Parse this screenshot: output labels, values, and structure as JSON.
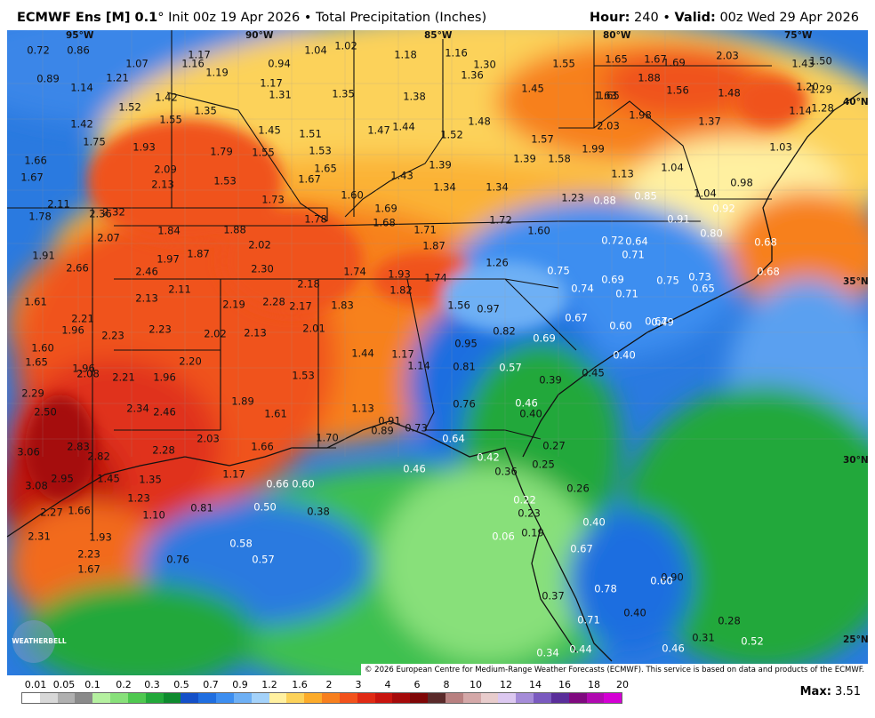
{
  "header": {
    "model": "ECMWF Ens [M] 0.1",
    "degree": "°",
    "init": "Init 00z 19 Apr 2026",
    "bullet": "•",
    "product": "Total Precipitation (Inches)",
    "hour_label": "Hour:",
    "hour_value": "240",
    "valid_label": "Valid:",
    "valid_value": "00z Wed 29 Apr 2026"
  },
  "coords": {
    "lon": [
      "95°W",
      "90°W",
      "85°W",
      "80°W",
      "75°W"
    ],
    "lat": [
      "40°N",
      "35°N",
      "30°N",
      "25°N"
    ]
  },
  "stations": [
    {
      "v": "0.72",
      "d": 1
    },
    {
      "v": "0.86",
      "d": 1
    },
    {
      "v": "0.89",
      "d": 1
    },
    {
      "v": "1.07",
      "d": 1
    },
    {
      "v": "1.16",
      "d": 1
    },
    {
      "v": "1.17",
      "d": 1
    },
    {
      "v": "1.19",
      "d": 1
    },
    {
      "v": "0.94",
      "d": 1
    },
    {
      "v": "1.04",
      "d": 1
    },
    {
      "v": "1.02",
      "d": 1
    },
    {
      "v": "1.18",
      "d": 1
    },
    {
      "v": "1.16",
      "d": 1
    },
    {
      "v": "1.30",
      "d": 1
    },
    {
      "v": "1.36",
      "d": 1
    },
    {
      "v": "1.55",
      "d": 1
    },
    {
      "v": "1.65",
      "d": 1
    },
    {
      "v": "1.67",
      "d": 1
    },
    {
      "v": "1.69",
      "d": 1
    },
    {
      "v": "2.03",
      "d": 1
    },
    {
      "v": "1.43",
      "d": 1
    },
    {
      "v": "1.50",
      "d": 1
    },
    {
      "v": "1.14",
      "d": 1
    },
    {
      "v": "1.21",
      "d": 1
    },
    {
      "v": "1.17",
      "d": 1
    },
    {
      "v": "1.31",
      "d": 1
    },
    {
      "v": "1.35",
      "d": 1
    },
    {
      "v": "1.38",
      "d": 1
    },
    {
      "v": "1.45",
      "d": 1
    },
    {
      "v": "1.65",
      "d": 1
    },
    {
      "v": "1.88",
      "d": 1
    },
    {
      "v": "1.56",
      "d": 1
    },
    {
      "v": "1.48",
      "d": 1
    },
    {
      "v": "1.20",
      "d": 1
    },
    {
      "v": "1.29",
      "d": 1
    },
    {
      "v": "1.52",
      "d": 1
    },
    {
      "v": "1.42",
      "d": 1
    },
    {
      "v": "1.35",
      "d": 1
    },
    {
      "v": "1.63",
      "d": 1
    },
    {
      "v": "1.14",
      "d": 1
    },
    {
      "v": "1.28",
      "d": 1
    },
    {
      "v": "1.42",
      "d": 1
    },
    {
      "v": "1.55",
      "d": 1
    },
    {
      "v": "1.45",
      "d": 1
    },
    {
      "v": "1.51",
      "d": 1
    },
    {
      "v": "1.47",
      "d": 1
    },
    {
      "v": "1.44",
      "d": 1
    },
    {
      "v": "1.48",
      "d": 1
    },
    {
      "v": "1.98",
      "d": 1
    },
    {
      "v": "1.37",
      "d": 1
    },
    {
      "v": "1.75",
      "d": 1
    },
    {
      "v": "1.93",
      "d": 1
    },
    {
      "v": "1.79",
      "d": 1
    },
    {
      "v": "1.55",
      "d": 1
    },
    {
      "v": "1.53",
      "d": 1
    },
    {
      "v": "1.52",
      "d": 1
    },
    {
      "v": "1.57",
      "d": 1
    },
    {
      "v": "2.03",
      "d": 1
    },
    {
      "v": "1.03",
      "d": 1
    },
    {
      "v": "1.66",
      "d": 1
    },
    {
      "v": "2.09",
      "d": 1
    },
    {
      "v": "1.65",
      "d": 1
    },
    {
      "v": "1.39",
      "d": 1
    },
    {
      "v": "1.39",
      "d": 1
    },
    {
      "v": "1.58",
      "d": 1
    },
    {
      "v": "1.99",
      "d": 1
    },
    {
      "v": "1.67",
      "d": 1
    },
    {
      "v": "2.13",
      "d": 1
    },
    {
      "v": "1.53",
      "d": 1
    },
    {
      "v": "1.67",
      "d": 1
    },
    {
      "v": "1.43",
      "d": 1
    },
    {
      "v": "1.34",
      "d": 1
    },
    {
      "v": "1.34",
      "d": 1
    },
    {
      "v": "1.13",
      "d": 1
    },
    {
      "v": "1.04",
      "d": 1
    },
    {
      "v": "0.98",
      "d": 1
    },
    {
      "v": "1.60",
      "d": 1
    },
    {
      "v": "1.73",
      "d": 1
    },
    {
      "v": "1.23",
      "d": 1
    },
    {
      "v": "0.88",
      "d": 0
    },
    {
      "v": "0.85",
      "d": 0
    },
    {
      "v": "1.04",
      "d": 1
    },
    {
      "v": "0.92",
      "d": 0
    },
    {
      "v": "2.11",
      "d": 1
    },
    {
      "v": "1.78",
      "d": 1
    },
    {
      "v": "2.36",
      "d": 1
    },
    {
      "v": "2.32",
      "d": 1
    },
    {
      "v": "1.78",
      "d": 1
    },
    {
      "v": "1.69",
      "d": 1
    },
    {
      "v": "1.72",
      "d": 1
    },
    {
      "v": "0.91",
      "d": 0
    },
    {
      "v": "1.84",
      "d": 1
    },
    {
      "v": "1.88",
      "d": 1
    },
    {
      "v": "1.68",
      "d": 1
    },
    {
      "v": "1.71",
      "d": 1
    },
    {
      "v": "1.60",
      "d": 1
    },
    {
      "v": "0.80",
      "d": 0
    },
    {
      "v": "2.07",
      "d": 1
    },
    {
      "v": "2.02",
      "d": 1
    },
    {
      "v": "1.87",
      "d": 1
    },
    {
      "v": "0.72",
      "d": 0
    },
    {
      "v": "0.64",
      "d": 0
    },
    {
      "v": "0.68",
      "d": 0
    },
    {
      "v": "1.91",
      "d": 1
    },
    {
      "v": "1.97",
      "d": 1
    },
    {
      "v": "1.87",
      "d": 1
    },
    {
      "v": "0.71",
      "d": 0
    },
    {
      "v": "2.66",
      "d": 1
    },
    {
      "v": "2.46",
      "d": 1
    },
    {
      "v": "2.30",
      "d": 1
    },
    {
      "v": "1.74",
      "d": 1
    },
    {
      "v": "1.93",
      "d": 1
    },
    {
      "v": "1.74",
      "d": 1
    },
    {
      "v": "1.26",
      "d": 1
    },
    {
      "v": "0.75",
      "d": 0
    },
    {
      "v": "0.68",
      "d": 0
    },
    {
      "v": "2.11",
      "d": 1
    },
    {
      "v": "2.18",
      "d": 1
    },
    {
      "v": "1.82",
      "d": 1
    },
    {
      "v": "0.69",
      "d": 0
    },
    {
      "v": "0.75",
      "d": 0
    },
    {
      "v": "0.73",
      "d": 0
    },
    {
      "v": "1.61",
      "d": 1
    },
    {
      "v": "2.13",
      "d": 1
    },
    {
      "v": "2.19",
      "d": 1
    },
    {
      "v": "2.28",
      "d": 1
    },
    {
      "v": "2.17",
      "d": 1
    },
    {
      "v": "1.83",
      "d": 1
    },
    {
      "v": "1.56",
      "d": 1
    },
    {
      "v": "0.97",
      "d": 1
    },
    {
      "v": "0.74",
      "d": 0
    },
    {
      "v": "0.71",
      "d": 0
    },
    {
      "v": "0.65",
      "d": 0
    },
    {
      "v": "2.21",
      "d": 1
    },
    {
      "v": "1.96",
      "d": 1
    },
    {
      "v": "2.23",
      "d": 1
    },
    {
      "v": "2.23",
      "d": 1
    },
    {
      "v": "2.02",
      "d": 1
    },
    {
      "v": "2.13",
      "d": 1
    },
    {
      "v": "2.01",
      "d": 1
    },
    {
      "v": "0.82",
      "d": 1
    },
    {
      "v": "0.67",
      "d": 0
    },
    {
      "v": "0.60",
      "d": 0
    },
    {
      "v": "0.67",
      "d": 0
    },
    {
      "v": "1.60",
      "d": 1
    },
    {
      "v": "0.95",
      "d": 1
    },
    {
      "v": "0.69",
      "d": 0
    },
    {
      "v": "0.49",
      "d": 0
    },
    {
      "v": "1.65",
      "d": 1
    },
    {
      "v": "1.96",
      "d": 1
    },
    {
      "v": "2.20",
      "d": 1
    },
    {
      "v": "1.44",
      "d": 1
    },
    {
      "v": "1.17",
      "d": 1
    },
    {
      "v": "0.40",
      "d": 0
    },
    {
      "v": "2.08",
      "d": 1
    },
    {
      "v": "2.21",
      "d": 1
    },
    {
      "v": "1.96",
      "d": 1
    },
    {
      "v": "1.53",
      "d": 1
    },
    {
      "v": "1.14",
      "d": 1
    },
    {
      "v": "0.81",
      "d": 1
    },
    {
      "v": "0.57",
      "d": 0
    },
    {
      "v": "0.45",
      "d": 1
    },
    {
      "v": "2.29",
      "d": 1
    },
    {
      "v": "0.39",
      "d": 1
    },
    {
      "v": "1.89",
      "d": 1
    },
    {
      "v": "2.50",
      "d": 1
    },
    {
      "v": "2.34",
      "d": 1
    },
    {
      "v": "2.46",
      "d": 1
    },
    {
      "v": "1.61",
      "d": 1
    },
    {
      "v": "1.13",
      "d": 1
    },
    {
      "v": "0.76",
      "d": 1
    },
    {
      "v": "0.46",
      "d": 0
    },
    {
      "v": "0.40",
      "d": 1
    },
    {
      "v": "0.91",
      "d": 1
    },
    {
      "v": "0.89",
      "d": 1
    },
    {
      "v": "0.73",
      "d": 1
    },
    {
      "v": "2.03",
      "d": 1
    },
    {
      "v": "1.70",
      "d": 1
    },
    {
      "v": "0.64",
      "d": 0
    },
    {
      "v": "2.83",
      "d": 1
    },
    {
      "v": "1.66",
      "d": 1
    },
    {
      "v": "0.27",
      "d": 1
    },
    {
      "v": "3.06",
      "d": 1
    },
    {
      "v": "2.82",
      "d": 1
    },
    {
      "v": "2.28",
      "d": 1
    },
    {
      "v": "0.42",
      "d": 0
    },
    {
      "v": "0.25",
      "d": 1
    },
    {
      "v": "0.46",
      "d": 0
    },
    {
      "v": "1.17",
      "d": 1
    },
    {
      "v": "0.36",
      "d": 1
    },
    {
      "v": "2.95",
      "d": 1
    },
    {
      "v": "1.45",
      "d": 1
    },
    {
      "v": "1.35",
      "d": 1
    },
    {
      "v": "0.66",
      "d": 0
    },
    {
      "v": "0.60",
      "d": 0
    },
    {
      "v": "3.08",
      "d": 1
    },
    {
      "v": "0.26",
      "d": 1
    },
    {
      "v": "1.23",
      "d": 1
    },
    {
      "v": "0.22",
      "d": 0
    },
    {
      "v": "2.27",
      "d": 1
    },
    {
      "v": "1.66",
      "d": 1
    },
    {
      "v": "0.81",
      "d": 1
    },
    {
      "v": "0.50",
      "d": 0
    },
    {
      "v": "0.38",
      "d": 1
    },
    {
      "v": "0.23",
      "d": 1
    },
    {
      "v": "1.10",
      "d": 1
    },
    {
      "v": "0.40",
      "d": 0
    },
    {
      "v": "2.31",
      "d": 1
    },
    {
      "v": "1.93",
      "d": 1
    },
    {
      "v": "0.19",
      "d": 1
    },
    {
      "v": "0.06",
      "d": 0
    },
    {
      "v": "0.58",
      "d": 0
    },
    {
      "v": "0.57",
      "d": 0
    },
    {
      "v": "2.23",
      "d": 1
    },
    {
      "v": "0.76",
      "d": 1
    },
    {
      "v": "0.67",
      "d": 0
    },
    {
      "v": "1.67",
      "d": 1
    },
    {
      "v": "0.60",
      "d": 0
    },
    {
      "v": "0.90",
      "d": 1
    },
    {
      "v": "0.78",
      "d": 0
    },
    {
      "v": "0.37",
      "d": 1
    },
    {
      "v": "0.40",
      "d": 1
    },
    {
      "v": "0.28",
      "d": 1
    },
    {
      "v": "0.71",
      "d": 0
    },
    {
      "v": "0.31",
      "d": 1
    },
    {
      "v": "0.52",
      "d": 0
    },
    {
      "v": "0.46",
      "d": 0
    },
    {
      "v": "0.44",
      "d": 0
    },
    {
      "v": "0.34",
      "d": 0
    }
  ],
  "copyright": "© 2026 European Centre for Medium-Range Weather Forecasts (ECMWF). This service is based on data and products of the ECMWF.",
  "logo_text": "WEATHERBELL",
  "legend": {
    "labels": [
      "0.01",
      "0.05",
      "0.1",
      "0.2",
      "0.3",
      "0.5",
      "0.7",
      "0.9",
      "1.2",
      "1.6",
      "2",
      "3",
      "4",
      "6",
      "8",
      "10",
      "12",
      "14",
      "16",
      "18",
      "20"
    ],
    "colors": [
      "#ffffff",
      "#d8d8d8",
      "#b0b0b0",
      "#8a8a8a",
      "#b5f0a0",
      "#88e07a",
      "#4fc850",
      "#22a83a",
      "#0e8a2e",
      "#1450c8",
      "#1f6ee0",
      "#3d8ef0",
      "#6eb0f5",
      "#a4d2fa",
      "#fff0a0",
      "#fcd25a",
      "#fcab2a",
      "#f77f1e",
      "#f2521c",
      "#e02a14",
      "#c8140e",
      "#a50a0a",
      "#7f0606",
      "#5a2a2a",
      "#b88080",
      "#d4a8a8",
      "#e8cccc",
      "#dcc8f0",
      "#a58cd8",
      "#7a5abf",
      "#5a2e9a",
      "#7f0a7f",
      "#b00ab0",
      "#d400d4"
    ],
    "max_label": "Max:",
    "max_value": "3.51"
  }
}
